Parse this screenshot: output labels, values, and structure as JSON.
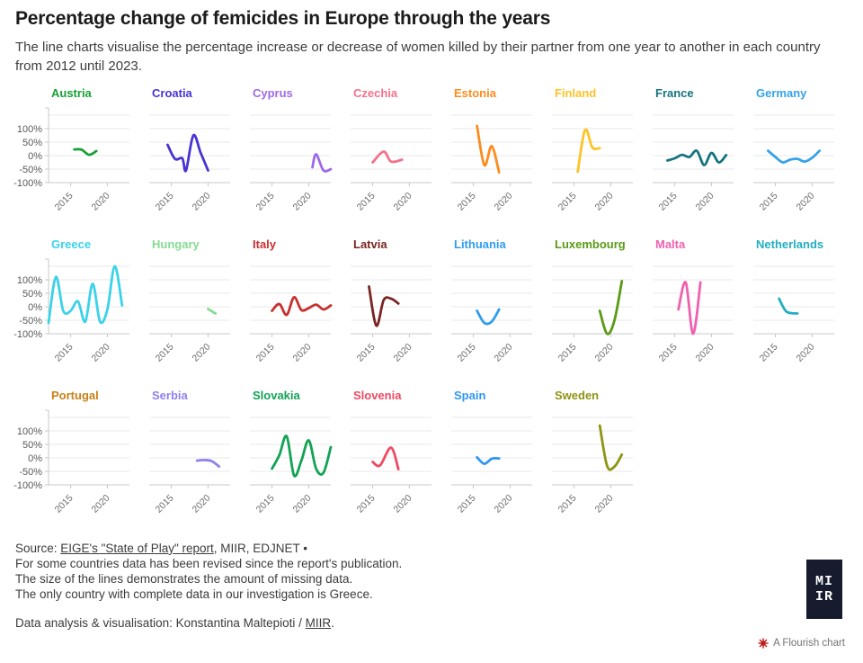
{
  "header": {
    "title": "Percentage change of femicides in Europe through the years",
    "subtitle": "The line charts visualise the percentage increase or decrease of women killed by their partner from one year to another in each country from 2012 until 2023."
  },
  "chart_data": {
    "type": "line",
    "layout": "small multiples, 8 columns x 3 rows",
    "x_axis": {
      "range": [
        2012,
        2023
      ],
      "ticks": [
        2015,
        2020
      ],
      "tick_labels": [
        "2015",
        "2020"
      ]
    },
    "y_axis": {
      "unit": "%",
      "range": [
        -100,
        160
      ],
      "gridlines": [
        150,
        100,
        50,
        0,
        -50,
        -100
      ],
      "tick_labels": [
        "100%",
        "50%",
        "0%",
        "-50%",
        "-100%"
      ]
    },
    "grid": true,
    "series": [
      {
        "name": "Austria",
        "color": "#16a034",
        "x": [
          2015.5,
          2016.5,
          2017.5,
          2018.5
        ],
        "y": [
          23,
          22,
          3,
          17
        ]
      },
      {
        "name": "Croatia",
        "color": "#4633d4",
        "x": [
          2014.5,
          2015.5,
          2016.5,
          2017,
          2018,
          2019,
          2020
        ],
        "y": [
          40,
          -12,
          -10,
          -55,
          75,
          10,
          -55
        ]
      },
      {
        "name": "Cyprus",
        "color": "#9e6ae8",
        "x": [
          2020.5,
          2021,
          2022,
          2023
        ],
        "y": [
          -43,
          5,
          -55,
          -50
        ]
      },
      {
        "name": "Czechia",
        "color": "#f4718a",
        "x": [
          2015,
          2016.5,
          2017.5,
          2019
        ],
        "y": [
          -25,
          15,
          -22,
          -15
        ]
      },
      {
        "name": "Estonia",
        "color": "#fb8c1e",
        "x": [
          2015.5,
          2016.5,
          2017.5,
          2018.5
        ],
        "y": [
          110,
          -35,
          35,
          -62
        ]
      },
      {
        "name": "Finland",
        "color": "#fdc328",
        "x": [
          2015.5,
          2016.5,
          2017.5,
          2018.5
        ],
        "y": [
          -60,
          95,
          30,
          28
        ]
      },
      {
        "name": "France",
        "color": "#15737f",
        "x": [
          2014,
          2015,
          2016,
          2017,
          2018,
          2019,
          2020,
          2021,
          2022
        ],
        "y": [
          -18,
          -10,
          3,
          -5,
          18,
          -35,
          10,
          -25,
          2
        ]
      },
      {
        "name": "Germany",
        "color": "#35a2ea",
        "x": [
          2014,
          2015,
          2016,
          2017,
          2018,
          2019,
          2020,
          2021
        ],
        "y": [
          18,
          -5,
          -25,
          -15,
          -12,
          -22,
          -8,
          18
        ]
      },
      {
        "name": "Greece",
        "color": "#3bd2ea",
        "x": [
          2012,
          2013,
          2014,
          2015,
          2016,
          2017,
          2018,
          2019,
          2020,
          2021,
          2022
        ],
        "y": [
          -60,
          110,
          -15,
          -15,
          20,
          -55,
          85,
          -55,
          -10,
          150,
          5
        ]
      },
      {
        "name": "Hungary",
        "color": "#86dc92",
        "x": [
          2020,
          2021
        ],
        "y": [
          -8,
          -25
        ]
      },
      {
        "name": "Italy",
        "color": "#c93030",
        "x": [
          2015,
          2016,
          2017,
          2018,
          2019,
          2020,
          2021,
          2022,
          2023
        ],
        "y": [
          -15,
          10,
          -30,
          35,
          -12,
          -5,
          8,
          -10,
          5
        ]
      },
      {
        "name": "Latvia",
        "color": "#7a2424",
        "x": [
          2014.5,
          2015.5,
          2016.5,
          2017.5,
          2018.5
        ],
        "y": [
          75,
          -70,
          25,
          30,
          12
        ]
      },
      {
        "name": "Lithuania",
        "color": "#2f9ded",
        "x": [
          2015.5,
          2016.5,
          2017.5,
          2018.5
        ],
        "y": [
          -15,
          -60,
          -55,
          -10
        ]
      },
      {
        "name": "Luxembourg",
        "color": "#5a9a15",
        "x": [
          2018.5,
          2019.5,
          2020.5,
          2021.5
        ],
        "y": [
          -15,
          -100,
          -50,
          95
        ]
      },
      {
        "name": "Malta",
        "color": "#f160ae",
        "x": [
          2015.5,
          2016.5,
          2017.5,
          2018.5
        ],
        "y": [
          -10,
          90,
          -100,
          90
        ]
      },
      {
        "name": "Netherlands",
        "color": "#23aec2",
        "x": [
          2015.5,
          2016.5,
          2018
        ],
        "y": [
          30,
          -18,
          -25
        ]
      },
      {
        "name": "Portugal",
        "color": "#c98016",
        "x": [],
        "y": []
      },
      {
        "name": "Serbia",
        "color": "#8d82ee",
        "x": [
          2018.5,
          2019.5,
          2020.5,
          2021.5
        ],
        "y": [
          -10,
          -8,
          -12,
          -32
        ]
      },
      {
        "name": "Slovakia",
        "color": "#12a355",
        "x": [
          2015,
          2016,
          2017,
          2018,
          2019,
          2020,
          2021,
          2022,
          2023
        ],
        "y": [
          -40,
          10,
          80,
          -65,
          -10,
          65,
          -40,
          -55,
          40
        ]
      },
      {
        "name": "Slovenia",
        "color": "#ef4a64",
        "x": [
          2015,
          2016,
          2017.5,
          2018.5
        ],
        "y": [
          -15,
          -28,
          38,
          -42
        ]
      },
      {
        "name": "Spain",
        "color": "#2e97f0",
        "x": [
          2015.5,
          2016.5,
          2017.5,
          2018.5
        ],
        "y": [
          2,
          -22,
          -3,
          -2
        ]
      },
      {
        "name": "Sweden",
        "color": "#8e9413",
        "x": [
          2018.5,
          2019.5,
          2020.5,
          2021.5
        ],
        "y": [
          120,
          -30,
          -32,
          12
        ]
      }
    ]
  },
  "footer": {
    "source_prefix": "Source: ",
    "source_link": "EIGE's \"State of Play\" report",
    "source_suffix": ", MIIR, EDJNET •",
    "notes": [
      "For some countries data has been revised since the report's publication.",
      "The size of the lines demonstrates the amount of missing data.",
      "The only country with complete data in our investigation is Greece."
    ],
    "credit_prefix": "Data analysis & visualisation: Konstantina Maltepioti / ",
    "credit_link": "MIIR",
    "credit_suffix": "."
  },
  "logo": {
    "line1": "MI",
    "line2": "IR"
  },
  "attribution": {
    "label": "A Flourish chart"
  }
}
